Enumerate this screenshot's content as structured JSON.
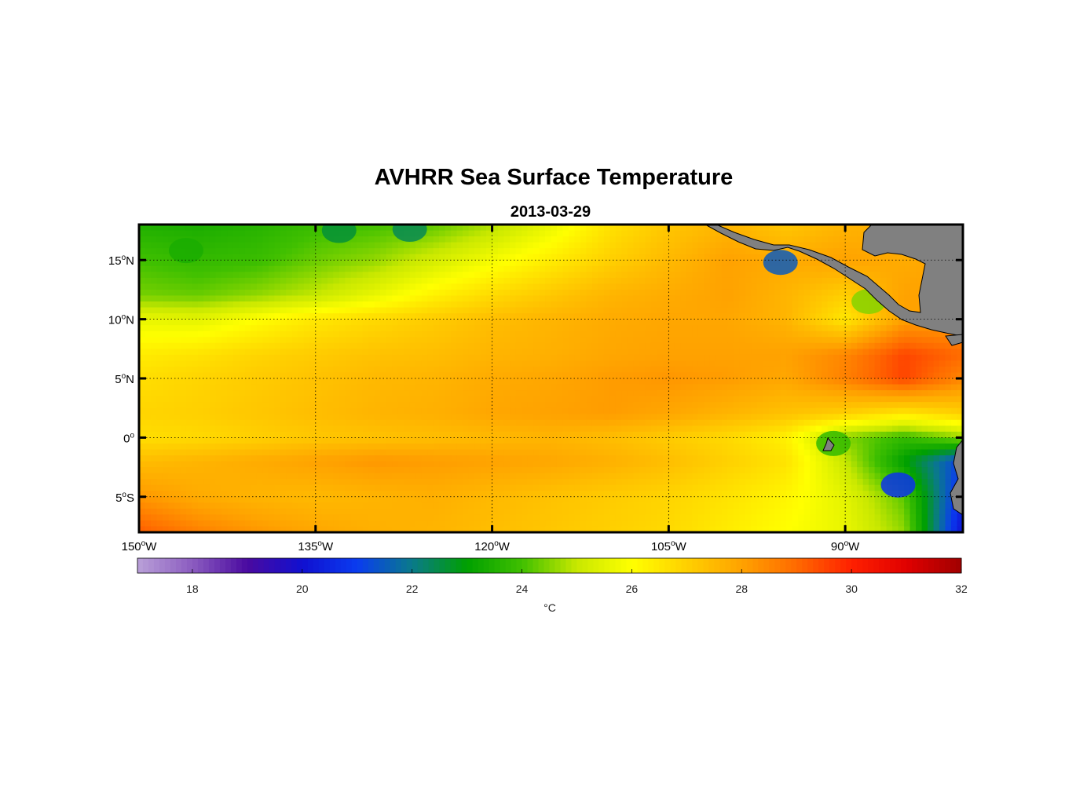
{
  "chart_data": {
    "type": "heatmap",
    "title": "AVHRR Sea Surface Temperature",
    "subtitle": "2013-03-29",
    "x_ticks": [
      {
        "value": -150,
        "num": "150",
        "deg": "o",
        "hemi": "W"
      },
      {
        "value": -135,
        "num": "135",
        "deg": "o",
        "hemi": "W"
      },
      {
        "value": -120,
        "num": "120",
        "deg": "o",
        "hemi": "W"
      },
      {
        "value": -105,
        "num": "105",
        "deg": "o",
        "hemi": "W"
      },
      {
        "value": -90,
        "num": "90",
        "deg": "o",
        "hemi": "W"
      }
    ],
    "y_ticks": [
      {
        "value": 15,
        "num": "15",
        "deg": "o",
        "hemi": "N"
      },
      {
        "value": 10,
        "num": "10",
        "deg": "o",
        "hemi": "N"
      },
      {
        "value": 5,
        "num": "5",
        "deg": "o",
        "hemi": "N"
      },
      {
        "value": 0,
        "num": "0",
        "deg": "o",
        "hemi": ""
      },
      {
        "value": -5,
        "num": "5",
        "deg": "o",
        "hemi": "S"
      }
    ],
    "xlim": [
      -150,
      -80
    ],
    "ylim": [
      -8,
      18
    ],
    "grid": true,
    "colorbar": {
      "label": "°C",
      "range": [
        17,
        32
      ],
      "ticks": [
        "18",
        "20",
        "22",
        "24",
        "26",
        "28",
        "30",
        "32"
      ],
      "tick_values": [
        18,
        20,
        22,
        24,
        26,
        28,
        30,
        32
      ],
      "colormap": [
        [
          17,
          "#b9a0d8"
        ],
        [
          18,
          "#8b5cc0"
        ],
        [
          19,
          "#4a0aa0"
        ],
        [
          20,
          "#1010d0"
        ],
        [
          21,
          "#0a3cf0"
        ],
        [
          22,
          "#0a7a8a"
        ],
        [
          23,
          "#00a000"
        ],
        [
          24,
          "#40c000"
        ],
        [
          25,
          "#c8e800"
        ],
        [
          26,
          "#ffff00"
        ],
        [
          27,
          "#ffd000"
        ],
        [
          28,
          "#ffa200"
        ],
        [
          29,
          "#ff6a00"
        ],
        [
          30,
          "#ff2000"
        ],
        [
          31,
          "#e00000"
        ],
        [
          32,
          "#a00000"
        ]
      ]
    },
    "sst_field_degC": {
      "lon": [
        -150,
        -145,
        -140,
        -135,
        -130,
        -125,
        -120,
        -115,
        -110,
        -105,
        -100,
        -95,
        -90,
        -85,
        -80
      ],
      "lat": [
        18,
        15,
        12,
        10,
        7,
        5,
        2,
        0,
        -2,
        -5,
        -8
      ],
      "values": [
        [
          23.5,
          23.4,
          23.6,
          23.9,
          24.0,
          24.2,
          24.8,
          25.6,
          26.6,
          27.2,
          27.6,
          27.2,
          27.6,
          27.8,
          28.0
        ],
        [
          24.0,
          23.8,
          23.9,
          24.3,
          24.6,
          25.2,
          25.8,
          26.4,
          27.0,
          27.5,
          28.0,
          27.8,
          28.0,
          27.8,
          28.0
        ],
        [
          24.4,
          24.3,
          24.6,
          25.0,
          25.6,
          26.3,
          26.8,
          27.2,
          27.6,
          27.8,
          28.0,
          27.6,
          27.0,
          28.0,
          28.0
        ],
        [
          25.6,
          25.5,
          26.0,
          26.5,
          26.8,
          27.1,
          27.4,
          27.6,
          27.8,
          27.9,
          27.9,
          27.6,
          26.5,
          28.0,
          28.0
        ],
        [
          26.4,
          26.6,
          26.9,
          27.1,
          27.3,
          27.4,
          27.6,
          27.7,
          27.9,
          28.0,
          28.0,
          28.0,
          28.5,
          29.5,
          29.0
        ],
        [
          26.7,
          26.9,
          27.1,
          27.3,
          27.5,
          27.6,
          27.8,
          27.9,
          28.1,
          28.2,
          28.1,
          27.9,
          28.6,
          29.5,
          28.5
        ],
        [
          26.9,
          27.0,
          27.2,
          27.4,
          27.6,
          27.7,
          27.9,
          28.0,
          28.1,
          27.9,
          27.6,
          27.3,
          27.0,
          26.5,
          27.0
        ],
        [
          26.7,
          26.8,
          27.0,
          27.2,
          27.3,
          27.4,
          27.5,
          27.6,
          27.4,
          27.1,
          26.8,
          26.3,
          24.5,
          23.8,
          24.6
        ],
        [
          27.4,
          27.6,
          27.8,
          28.0,
          28.2,
          28.1,
          28.0,
          27.9,
          27.7,
          27.4,
          27.0,
          26.6,
          25.0,
          23.0,
          21.0
        ],
        [
          28.2,
          27.8,
          27.6,
          27.5,
          27.6,
          27.7,
          27.5,
          27.3,
          27.1,
          26.9,
          26.6,
          26.2,
          25.5,
          24.2,
          20.5
        ],
        [
          29.2,
          28.6,
          28.2,
          27.9,
          27.7,
          27.6,
          27.4,
          27.2,
          27.0,
          26.8,
          26.4,
          26.0,
          25.6,
          24.6,
          20.0
        ]
      ],
      "cool_features": [
        {
          "lon": -146,
          "lat": 15.8,
          "value": 23.4
        },
        {
          "lon": -133,
          "lat": 17.5,
          "value": 22.6
        },
        {
          "lon": -127,
          "lat": 17.6,
          "value": 22.4
        },
        {
          "lon": -95.5,
          "lat": 14.8,
          "value": 21.5
        },
        {
          "lon": -88,
          "lat": 11.5,
          "value": 24.5
        },
        {
          "lon": -91,
          "lat": -0.5,
          "value": 23.8
        },
        {
          "lon": -85.5,
          "lat": -4.0,
          "value": 20.8
        }
      ]
    },
    "land_color": "#808080"
  }
}
